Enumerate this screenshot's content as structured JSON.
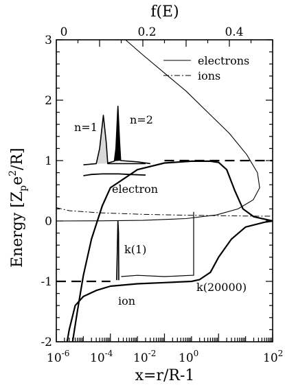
{
  "chart_data": {
    "type": "line",
    "title": "",
    "top_axis": {
      "label": "f(E)",
      "range": [
        0,
        0.5
      ],
      "ticks": [
        0,
        0.2,
        0.4
      ],
      "tick_labels": [
        "0",
        "0.2",
        "0.4"
      ]
    },
    "x_axis": {
      "label": "x=r/R-1",
      "scale": "log",
      "range": [
        1e-06,
        100
      ],
      "tick_values": [
        1e-06,
        0.0001,
        0.01,
        1,
        100
      ],
      "tick_labels": [
        {
          "base": "10",
          "exp": "-6"
        },
        {
          "base": "10",
          "exp": "-4"
        },
        {
          "base": "10",
          "exp": "-2"
        },
        {
          "base": "10",
          "exp": "0"
        },
        {
          "base": "10",
          "exp": "2"
        }
      ]
    },
    "y_axis": {
      "label_parts": {
        "a": "Energy [Z",
        "b": "p",
        "c": "e",
        "d": "2",
        "e": "/R]"
      },
      "range": [
        -2,
        3
      ],
      "ticks": [
        -2,
        -1,
        0,
        1,
        2,
        3
      ],
      "tick_labels": [
        "-2",
        "-1",
        "0",
        "1",
        "2",
        "3"
      ]
    },
    "legend": {
      "placement": "top-right",
      "entries": [
        {
          "label": "electrons",
          "style": "solid"
        },
        {
          "label": "ions",
          "style": "dash-dot"
        }
      ]
    },
    "annotations": {
      "n1": "n=1",
      "n2": "n=2",
      "electron": "electron",
      "k1": "k(1)",
      "k20000": "k(20000)",
      "ion": "ion"
    },
    "series": [
      {
        "name": "electrons",
        "axis": "top",
        "points": [
          [
            0.16,
            3.0
          ],
          [
            0.2,
            2.75
          ],
          [
            0.25,
            2.45
          ],
          [
            0.3,
            2.15
          ],
          [
            0.35,
            1.8
          ],
          [
            0.4,
            1.45
          ],
          [
            0.44,
            1.1
          ],
          [
            0.465,
            0.8
          ],
          [
            0.47,
            0.55
          ],
          [
            0.455,
            0.35
          ],
          [
            0.42,
            0.2
          ],
          [
            0.37,
            0.1
          ],
          [
            0.3,
            0.04
          ],
          [
            0.2,
            0.01
          ],
          [
            0.1,
            0.002
          ],
          [
            0.0,
            0.0
          ]
        ]
      },
      {
        "name": "ions",
        "axis": "top",
        "points": [
          [
            0.0,
            0.22
          ],
          [
            0.03,
            0.17
          ],
          [
            0.1,
            0.135
          ],
          [
            0.2,
            0.11
          ],
          [
            0.3,
            0.095
          ],
          [
            0.4,
            0.085
          ],
          [
            0.47,
            0.08
          ],
          [
            0.5,
            0.08
          ]
        ]
      },
      {
        "name": "electron potential",
        "points": [
          [
            4e-06,
            -2.0
          ],
          [
            6e-06,
            -1.5
          ],
          [
            1e-05,
            -0.9
          ],
          [
            2e-05,
            -0.3
          ],
          [
            5e-05,
            0.25
          ],
          [
            0.0001,
            0.55
          ],
          [
            0.001,
            0.85
          ],
          [
            0.01,
            0.96
          ],
          [
            0.1,
            0.99
          ],
          [
            0.5,
            0.99
          ],
          [
            1,
            0.97
          ],
          [
            2,
            0.85
          ],
          [
            4,
            0.5
          ],
          [
            8,
            0.2
          ],
          [
            20,
            0.07
          ],
          [
            100,
            0.0
          ]
        ]
      },
      {
        "name": "ion potential",
        "points": [
          [
            2.5e-06,
            -2.0
          ],
          [
            3e-06,
            -1.8
          ],
          [
            5e-06,
            -1.4
          ],
          [
            1e-05,
            -1.25
          ],
          [
            3e-05,
            -1.15
          ],
          [
            0.0001,
            -1.08
          ],
          [
            0.001,
            -1.04
          ],
          [
            0.01,
            -1.02
          ],
          [
            0.1,
            -1.0
          ],
          [
            0.2,
            -0.97
          ],
          [
            0.5,
            -0.85
          ],
          [
            1,
            -0.6
          ],
          [
            3,
            -0.3
          ],
          [
            10,
            -0.1
          ],
          [
            50,
            -0.02
          ],
          [
            100,
            0.0
          ]
        ]
      },
      {
        "name": "electron level",
        "style": "dashed",
        "points": [
          [
            0.01,
            1.0
          ],
          [
            100,
            1.0
          ]
        ]
      },
      {
        "name": "ion level",
        "style": "dashed",
        "points": [
          [
            1e-06,
            -1.0
          ],
          [
            0.0001,
            -1.0
          ]
        ]
      },
      {
        "name": "k(1)",
        "points": [
          [
            0.00017,
            -0.98
          ],
          [
            0.00018,
            -0.5
          ],
          [
            0.00019,
            0.0
          ],
          [
            0.0002,
            -0.2
          ],
          [
            0.000205,
            -0.98
          ]
        ]
      },
      {
        "name": "k(20000)",
        "points": [
          [
            0.00025,
            -0.92
          ],
          [
            0.001,
            -0.9
          ],
          [
            0.01,
            -0.92
          ],
          [
            0.1,
            -0.9
          ],
          [
            0.12,
            -0.9
          ],
          [
            0.12,
            0.15
          ]
        ]
      },
      {
        "name": "n=1",
        "points": [
          [
            1e-05,
            0.93
          ],
          [
            3e-05,
            0.95
          ],
          [
            4e-05,
            1.2
          ],
          [
            5.5e-05,
            1.75
          ],
          [
            7e-05,
            1.3
          ],
          [
            8e-05,
            0.95
          ],
          [
            0.002,
            0.95
          ]
        ]
      },
      {
        "name": "n=2",
        "points": [
          [
            8e-05,
            0.96
          ],
          [
            0.00014,
            0.99
          ],
          [
            0.00016,
            1.2
          ],
          [
            0.00019,
            1.9
          ],
          [
            0.00022,
            1.3
          ],
          [
            0.00024,
            1.0
          ],
          [
            0.001,
            0.98
          ],
          [
            0.003,
            0.95
          ]
        ]
      },
      {
        "name": "electron",
        "points": [
          [
            1e-05,
            0.75
          ],
          [
            2e-05,
            0.77
          ],
          [
            5e-05,
            0.78
          ],
          [
            0.0002,
            0.78
          ],
          [
            0.0005,
            0.77
          ],
          [
            0.002,
            0.76
          ]
        ]
      }
    ]
  }
}
